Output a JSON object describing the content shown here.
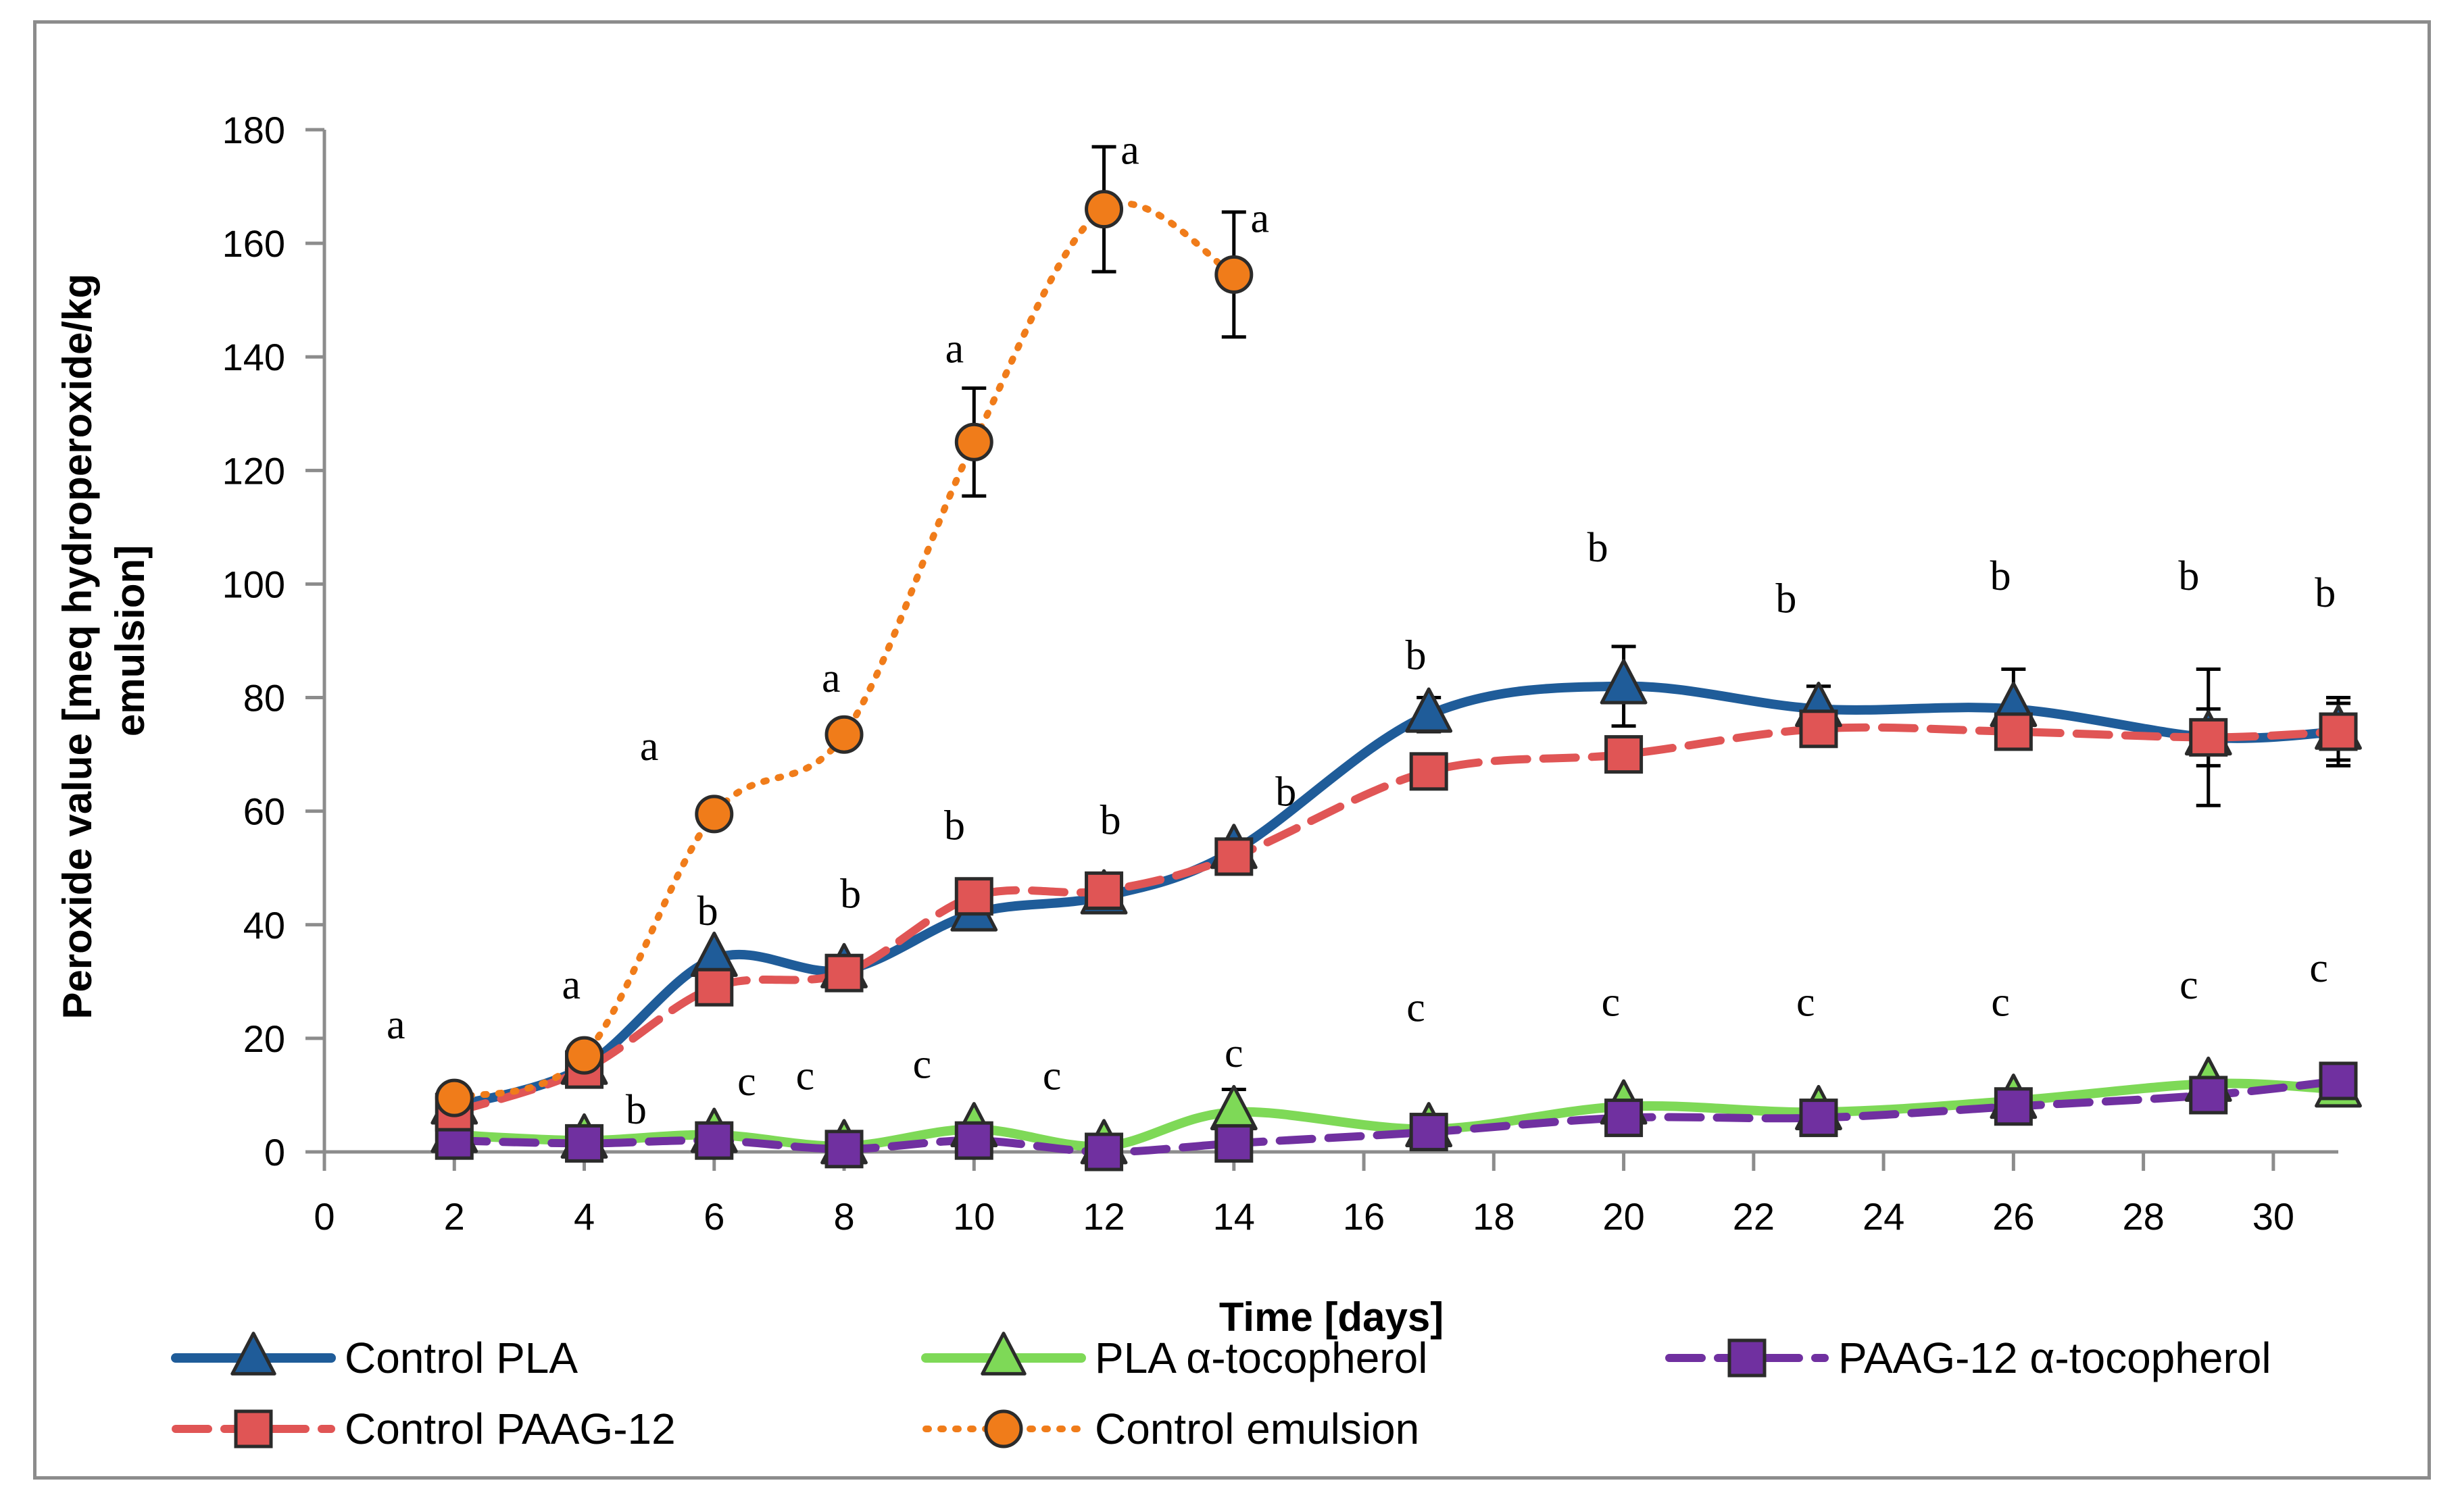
{
  "chart_data": {
    "type": "line",
    "xlabel": "Time [days]",
    "ylabel": "Peroxide value [meq hydroperoxide/kg emulsion]",
    "ylabel_lines": [
      "Peroxide value [meq hydroperoxide/kg",
      "emulsion]"
    ],
    "xlim": [
      0,
      31
    ],
    "ylim": [
      0,
      180
    ],
    "xticks": [
      "0",
      "2",
      "4",
      "6",
      "8",
      "10",
      "12",
      "14",
      "16",
      "18",
      "20",
      "22",
      "24",
      "26",
      "28",
      "30"
    ],
    "yticks": [
      "0",
      "20",
      "40",
      "60",
      "80",
      "100",
      "120",
      "140",
      "160",
      "180"
    ],
    "series": [
      {
        "name": "Control PLA",
        "color": "#1f5c99",
        "style": "solid",
        "marker": "triangle",
        "marker_fill": "#1f5c99",
        "x": [
          2,
          4,
          6,
          8,
          10,
          12,
          14,
          17,
          20,
          23,
          26,
          29,
          31
        ],
        "y": [
          8,
          15,
          34,
          32,
          42,
          45,
          53,
          77,
          82,
          78,
          78,
          73,
          74
        ],
        "err": [
          0,
          0,
          0,
          0,
          0,
          0,
          0,
          3,
          7,
          4,
          7,
          12,
          6
        ]
      },
      {
        "name": "PLA α-tocopherol",
        "color": "#7ed957",
        "style": "solid",
        "marker": "triangle",
        "marker_fill": "#7ed957",
        "x": [
          2,
          4,
          6,
          8,
          10,
          12,
          14,
          17,
          20,
          23,
          26,
          29,
          31
        ],
        "y": [
          3,
          2,
          3,
          1,
          4,
          1,
          7,
          4,
          8,
          7,
          9,
          12,
          11
        ],
        "err": [
          0,
          0,
          0,
          0,
          0,
          0,
          4,
          0,
          0,
          0,
          0,
          0,
          0
        ]
      },
      {
        "name": "PAAG-12 α-tocopherol",
        "color": "#7030a0",
        "style": "dashed",
        "marker": "square",
        "marker_fill": "#7030a0",
        "x": [
          2,
          4,
          6,
          8,
          10,
          12,
          14,
          17,
          20,
          23,
          26,
          29,
          31
        ],
        "y": [
          2,
          1.5,
          2,
          0.5,
          2,
          0,
          1.5,
          3.5,
          6,
          6,
          8,
          10,
          12.5
        ],
        "err": [
          0,
          0,
          0,
          0,
          0,
          0,
          0,
          0,
          0,
          0,
          0,
          0,
          0
        ]
      },
      {
        "name": "Control PAAG-12",
        "color": "#e05555",
        "style": "dashed",
        "marker": "square",
        "marker_fill": "#e05555",
        "x": [
          2,
          4,
          6,
          8,
          10,
          12,
          14,
          17,
          20,
          23,
          26,
          29,
          31
        ],
        "y": [
          7,
          14.5,
          29,
          31.5,
          45,
          46,
          52,
          67,
          70,
          74.5,
          74,
          73,
          74
        ],
        "err": [
          0,
          0,
          0,
          0,
          0,
          0,
          0,
          0,
          0,
          3,
          0,
          5,
          5
        ]
      },
      {
        "name": "Control emulsion",
        "color": "#f07c1a",
        "style": "dotted",
        "marker": "circle",
        "marker_fill": "#f07c1a",
        "x": [
          2,
          4,
          6,
          8,
          10,
          12,
          14
        ],
        "y": [
          9.5,
          17,
          59.5,
          73.5,
          125,
          166,
          154.5
        ],
        "err": [
          0,
          0,
          0,
          0,
          9.5,
          11,
          11
        ]
      }
    ],
    "annotations": [
      {
        "text": "a",
        "x": 1.1,
        "y": 20
      },
      {
        "text": "a",
        "x": 3.8,
        "y": 27
      },
      {
        "text": "a",
        "x": 5,
        "y": 69
      },
      {
        "text": "a",
        "x": 7.8,
        "y": 81
      },
      {
        "text": "a",
        "x": 9.7,
        "y": 139
      },
      {
        "text": "a",
        "x": 12.4,
        "y": 174
      },
      {
        "text": "a",
        "x": 14.4,
        "y": 162
      },
      {
        "text": "b",
        "x": 4.8,
        "y": 5
      },
      {
        "text": "b",
        "x": 5.9,
        "y": 40
      },
      {
        "text": "b",
        "x": 8.1,
        "y": 43
      },
      {
        "text": "b",
        "x": 9.7,
        "y": 55
      },
      {
        "text": "b",
        "x": 12.1,
        "y": 56
      },
      {
        "text": "b",
        "x": 14.8,
        "y": 61
      },
      {
        "text": "b",
        "x": 16.8,
        "y": 85
      },
      {
        "text": "b",
        "x": 19.6,
        "y": 104
      },
      {
        "text": "b",
        "x": 22.5,
        "y": 95
      },
      {
        "text": "b",
        "x": 25.8,
        "y": 99
      },
      {
        "text": "b",
        "x": 28.7,
        "y": 99
      },
      {
        "text": "b",
        "x": 30.8,
        "y": 96
      },
      {
        "text": "c",
        "x": 6.5,
        "y": 10
      },
      {
        "text": "c",
        "x": 7.4,
        "y": 11
      },
      {
        "text": "c",
        "x": 9.2,
        "y": 13
      },
      {
        "text": "c",
        "x": 11.2,
        "y": 11
      },
      {
        "text": "c",
        "x": 14,
        "y": 15
      },
      {
        "text": "c",
        "x": 16.8,
        "y": 23
      },
      {
        "text": "c",
        "x": 19.8,
        "y": 24
      },
      {
        "text": "c",
        "x": 22.8,
        "y": 24
      },
      {
        "text": "c",
        "x": 25.8,
        "y": 24
      },
      {
        "text": "c",
        "x": 28.7,
        "y": 27
      },
      {
        "text": "c",
        "x": 30.7,
        "y": 30
      }
    ]
  }
}
